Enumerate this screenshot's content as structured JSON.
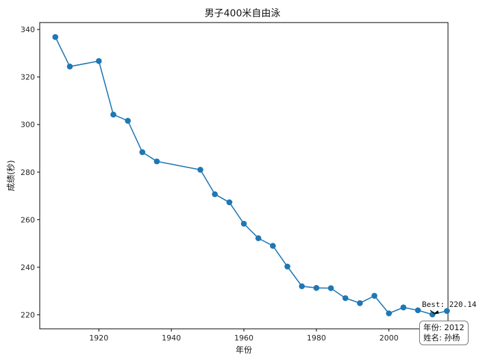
{
  "chart_data": {
    "type": "line",
    "title": "男子400米自由泳",
    "xlabel": "年份",
    "ylabel": "成绩(秒)",
    "xlim": [
      1903.7,
      2016.3
    ],
    "ylim": [
      214.1,
      342.9
    ],
    "xticks": [
      1920,
      1940,
      1960,
      1980,
      2000
    ],
    "yticks": [
      220,
      240,
      260,
      280,
      300,
      320,
      340
    ],
    "series": [
      {
        "color": "#1f77b4",
        "x": [
          1908,
          1912,
          1920,
          1924,
          1928,
          1932,
          1936,
          1948,
          1952,
          1956,
          1960,
          1964,
          1968,
          1972,
          1976,
          1980,
          1984,
          1988,
          1992,
          1996,
          2000,
          2004,
          2008,
          2012,
          2016
        ],
        "y": [
          336.8,
          324.4,
          326.7,
          304.2,
          301.6,
          288.4,
          284.5,
          281.0,
          270.7,
          267.3,
          258.3,
          252.2,
          249.0,
          240.3,
          232.0,
          231.3,
          231.2,
          227.0,
          224.9,
          228.0,
          220.6,
          223.1,
          221.9,
          220.14,
          221.6
        ]
      }
    ],
    "grid": false,
    "annotation": {
      "text": "Best: 220.14",
      "x": 2012,
      "y": 220.14
    },
    "info_box": {
      "year_line": "年份: 2012",
      "name_line": "姓名: 孙杨"
    }
  }
}
